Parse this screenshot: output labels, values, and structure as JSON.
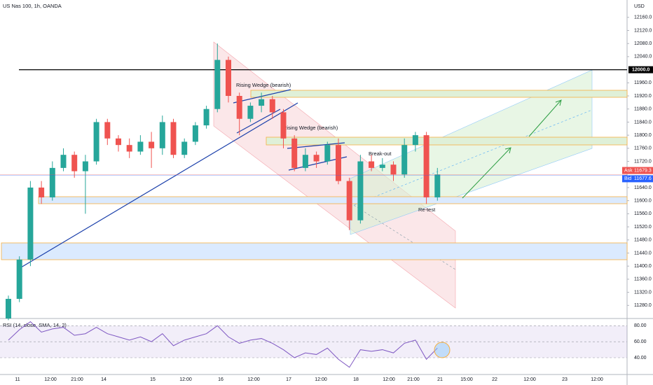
{
  "chart_data": {
    "type": "candlestick",
    "title": "US Nas 100, 1h, OANDA",
    "y_axis_label": "USD",
    "ylim": [
      11240,
      12213
    ],
    "yticks": [
      {
        "value": 12160,
        "label": "12160.0"
      },
      {
        "value": 12120,
        "label": "12120.0"
      },
      {
        "value": 12080,
        "label": "12080.0"
      },
      {
        "value": 12040,
        "label": "12040.0"
      },
      {
        "value": 11960,
        "label": "11960.0"
      },
      {
        "value": 11920,
        "label": "11920.0"
      },
      {
        "value": 11880,
        "label": "11880.0"
      },
      {
        "value": 11840,
        "label": "11840.0"
      },
      {
        "value": 11800,
        "label": "11800.0"
      },
      {
        "value": 11760,
        "label": "11760.0"
      },
      {
        "value": 11720,
        "label": "11720.0"
      },
      {
        "value": 11640,
        "label": "11640.0"
      },
      {
        "value": 11600,
        "label": "11600.0"
      },
      {
        "value": 11560,
        "label": "11560.0"
      },
      {
        "value": 11520,
        "label": "11520.0"
      },
      {
        "value": 11480,
        "label": "11480.0"
      },
      {
        "value": 11440,
        "label": "11440.0"
      },
      {
        "value": 11400,
        "label": "11400.0"
      },
      {
        "value": 11360,
        "label": "11360.0"
      },
      {
        "value": 11320,
        "label": "11320.0"
      },
      {
        "value": 11280,
        "label": "11280.0"
      }
    ],
    "x_labels": [
      "11",
      "12:00",
      "21:00",
      "14",
      "15",
      "12:00",
      "16",
      "12:00",
      "17",
      "12:00",
      "18",
      "12:00",
      "21:00",
      "21",
      "15:00",
      "22",
      "12:00",
      "23",
      "12:00"
    ],
    "up_color": "#26a69a",
    "down_color": "#ef5350",
    "open": [
      11240,
      11300,
      11420,
      11640,
      11610,
      11700,
      11740,
      11690,
      11720,
      11840,
      11790,
      11770,
      11750,
      11780,
      11760,
      11840,
      11740,
      11780,
      11830,
      11880,
      12030,
      11920,
      11850,
      11890,
      11910,
      11870,
      11790,
      11700,
      11740,
      11720,
      11770,
      11660,
      11540,
      11720,
      11700,
      11710,
      11680,
      11770,
      11800,
      11610
    ],
    "high": [
      11310,
      11430,
      11660,
      11660,
      11720,
      11760,
      11750,
      11740,
      11850,
      11850,
      11800,
      11790,
      11800,
      11810,
      11860,
      11850,
      11790,
      11840,
      11890,
      12080,
      12040,
      11930,
      11900,
      11930,
      11920,
      11880,
      11800,
      11760,
      11750,
      11780,
      11790,
      11670,
      11740,
      11740,
      11730,
      11720,
      11790,
      11810,
      11810,
      11700
    ],
    "low": [
      11235,
      11290,
      11400,
      11590,
      11600,
      11690,
      11670,
      11560,
      11710,
      11770,
      11750,
      11730,
      11740,
      11700,
      11740,
      11730,
      11730,
      11770,
      11820,
      11870,
      11900,
      11800,
      11840,
      11870,
      11850,
      11760,
      11690,
      11690,
      11700,
      11710,
      11650,
      11510,
      11530,
      11690,
      11690,
      11660,
      11670,
      11750,
      11590,
      11600
    ],
    "close": [
      11300,
      11420,
      11640,
      11610,
      11700,
      11740,
      11690,
      11720,
      11840,
      11790,
      11770,
      11750,
      11780,
      11760,
      11840,
      11740,
      11780,
      11830,
      11880,
      12030,
      11920,
      11850,
      11890,
      11910,
      11870,
      11790,
      11700,
      11740,
      11720,
      11770,
      11660,
      11540,
      11720,
      11700,
      11710,
      11680,
      11770,
      11800,
      11610,
      11680
    ],
    "price_line": {
      "value": 12000,
      "label": "12000.0"
    },
    "ask": {
      "name": "Ask",
      "value": 11679.3,
      "label": "11679.3"
    },
    "bid": {
      "name": "Bid",
      "value": 11677.6,
      "label": "11677.6"
    },
    "annotations": [
      "Rising Wedge (bearish)",
      "Rising Wedge (bearish)",
      "Break-out",
      "Re-test"
    ],
    "rsi": {
      "label": "RSI (14, close, SMA, 14, 2)",
      "color": "#7e57c2",
      "ylim": [
        19,
        89
      ],
      "yticks": [
        {
          "value": 80,
          "label": "80.00"
        },
        {
          "value": 60,
          "label": "60.00"
        },
        {
          "value": 40,
          "label": "40.00"
        }
      ],
      "values": [
        62,
        75,
        85,
        72,
        76,
        78,
        68,
        70,
        78,
        70,
        66,
        62,
        66,
        60,
        70,
        55,
        62,
        66,
        70,
        80,
        66,
        58,
        62,
        64,
        58,
        50,
        40,
        46,
        44,
        52,
        38,
        28,
        50,
        48,
        50,
        46,
        58,
        62,
        38,
        52
      ]
    }
  }
}
